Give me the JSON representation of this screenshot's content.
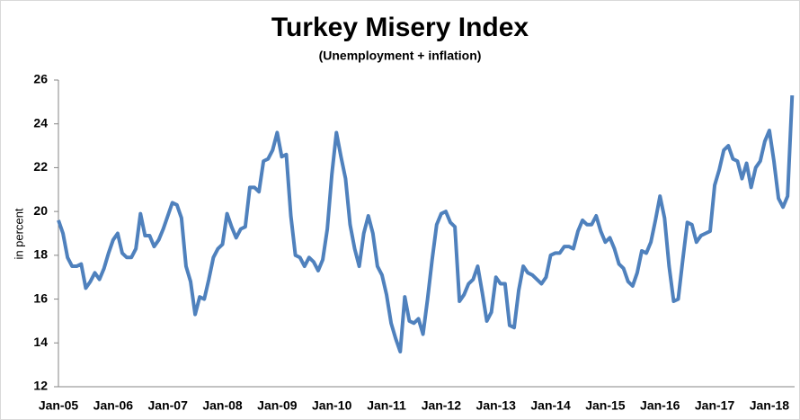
{
  "chart_data": {
    "type": "line",
    "title": "Turkey Misery Index",
    "subtitle": "(Unemployment + inflation)",
    "y_label": "in percent",
    "categories": [
      "Jan-05",
      null,
      null,
      null,
      null,
      null,
      null,
      null,
      null,
      null,
      null,
      null,
      "Jan-06",
      null,
      null,
      null,
      null,
      null,
      null,
      null,
      null,
      null,
      null,
      null,
      "Jan-07",
      null,
      null,
      null,
      null,
      null,
      null,
      null,
      null,
      null,
      null,
      null,
      "Jan-08",
      null,
      null,
      null,
      null,
      null,
      null,
      null,
      null,
      null,
      null,
      null,
      "Jan-09",
      null,
      null,
      null,
      null,
      null,
      null,
      null,
      null,
      null,
      null,
      null,
      "Jan-10",
      null,
      null,
      null,
      null,
      null,
      null,
      null,
      null,
      null,
      null,
      null,
      "Jan-11",
      null,
      null,
      null,
      null,
      null,
      null,
      null,
      null,
      null,
      null,
      null,
      "Jan-12",
      null,
      null,
      null,
      null,
      null,
      null,
      null,
      null,
      null,
      null,
      null,
      "Jan-13",
      null,
      null,
      null,
      null,
      null,
      null,
      null,
      null,
      null,
      null,
      null,
      "Jan-14",
      null,
      null,
      null,
      null,
      null,
      null,
      null,
      null,
      null,
      null,
      null,
      "Jan-15",
      null,
      null,
      null,
      null,
      null,
      null,
      null,
      null,
      null,
      null,
      null,
      "Jan-16",
      null,
      null,
      null,
      null,
      null,
      null,
      null,
      null,
      null,
      null,
      null,
      "Jan-17",
      null,
      null,
      null,
      null,
      null,
      null,
      null,
      null,
      null,
      null,
      null,
      "Jan-18",
      null,
      null,
      null,
      null,
      null
    ],
    "values": [
      19.6,
      19.0,
      17.9,
      17.5,
      17.5,
      17.6,
      16.5,
      16.8,
      17.2,
      16.9,
      17.4,
      18.1,
      18.7,
      19.0,
      18.1,
      17.9,
      17.9,
      18.3,
      19.9,
      18.9,
      18.9,
      18.4,
      18.7,
      19.2,
      19.8,
      20.4,
      20.3,
      19.7,
      17.5,
      16.8,
      15.3,
      16.1,
      16.0,
      16.9,
      17.9,
      18.3,
      18.5,
      19.9,
      19.3,
      18.8,
      19.2,
      19.3,
      21.1,
      21.1,
      20.9,
      22.3,
      22.4,
      22.8,
      23.6,
      22.5,
      22.6,
      19.8,
      18.0,
      17.9,
      17.5,
      17.9,
      17.7,
      17.3,
      17.8,
      19.2,
      21.7,
      23.6,
      22.5,
      21.5,
      19.4,
      18.3,
      17.5,
      19.0,
      19.8,
      19.0,
      17.5,
      17.1,
      16.2,
      14.9,
      14.2,
      13.6,
      16.1,
      15.0,
      14.9,
      15.1,
      14.4,
      16.0,
      17.8,
      19.4,
      19.9,
      20.0,
      19.5,
      19.3,
      15.9,
      16.2,
      16.7,
      16.9,
      17.5,
      16.3,
      15.0,
      15.4,
      17.0,
      16.7,
      16.7,
      14.8,
      14.7,
      16.4,
      17.5,
      17.2,
      17.1,
      16.9,
      16.7,
      17.0,
      18.0,
      18.1,
      18.1,
      18.4,
      18.4,
      18.3,
      19.1,
      19.6,
      19.4,
      19.4,
      19.8,
      19.1,
      18.6,
      18.8,
      18.3,
      17.6,
      17.4,
      16.8,
      16.6,
      17.2,
      18.2,
      18.1,
      18.6,
      19.6,
      20.7,
      19.7,
      17.5,
      15.9,
      16.0,
      17.8,
      19.5,
      19.4,
      18.6,
      18.9,
      19.0,
      19.1,
      21.2,
      21.9,
      22.8,
      23.0,
      22.4,
      22.3,
      21.5,
      22.2,
      21.1,
      22.0,
      22.3,
      23.2,
      23.7,
      22.3,
      20.6,
      20.2,
      20.7,
      25.3
    ],
    "color": "#4f81bd",
    "ylim": [
      12,
      26
    ],
    "yticks": [
      12,
      14,
      16,
      18,
      20,
      22,
      24,
      26
    ],
    "grid": false
  }
}
